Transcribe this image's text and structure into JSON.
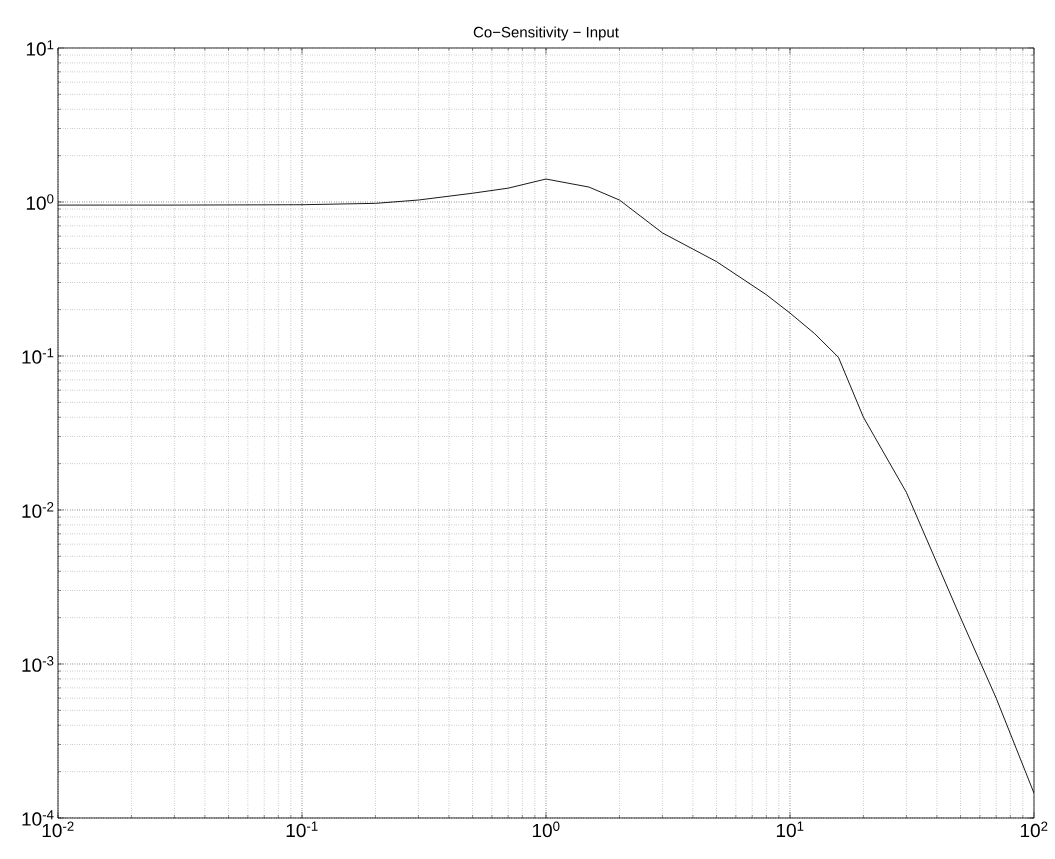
{
  "chart_data": {
    "type": "line",
    "title": "Co−Sensitivity − Input",
    "x": [
      0.01,
      0.03,
      0.1,
      0.2,
      0.3,
      0.5,
      0.7,
      1,
      1.5,
      2,
      3,
      5,
      8,
      10,
      12.6,
      15.8,
      20,
      30,
      50,
      70,
      100
    ],
    "values": [
      0.955,
      0.955,
      0.96,
      0.98,
      1.03,
      1.14,
      1.23,
      1.41,
      1.25,
      1.03,
      0.63,
      0.41,
      0.25,
      0.19,
      0.14,
      0.098,
      0.04,
      0.013,
      0.002,
      0.0006,
      0.000145
    ],
    "color": "#000000",
    "log": "xy",
    "grid": true,
    "xlim": [
      0.01,
      100
    ],
    "ylim": [
      0.0001,
      10
    ],
    "xticks": [
      {
        "value": 0.01,
        "label": "10$^{-2}$"
      },
      {
        "value": 0.1,
        "label": "10$^{-1}$"
      },
      {
        "value": 1,
        "label": "10$^{0}$"
      },
      {
        "value": 10,
        "label": "10$^{1}$"
      },
      {
        "value": 100,
        "label": "10$^{2}$"
      }
    ],
    "yticks": [
      {
        "value": 0.0001,
        "label": "10$^{-4}$"
      },
      {
        "value": 0.001,
        "label": "10$^{-3}$"
      },
      {
        "value": 0.01,
        "label": "10$^{-2}$"
      },
      {
        "value": 0.1,
        "label": "10$^{-1}$"
      },
      {
        "value": 1,
        "label": "10$^{0}$"
      },
      {
        "value": 10,
        "label": "10$^{1}$"
      }
    ]
  }
}
